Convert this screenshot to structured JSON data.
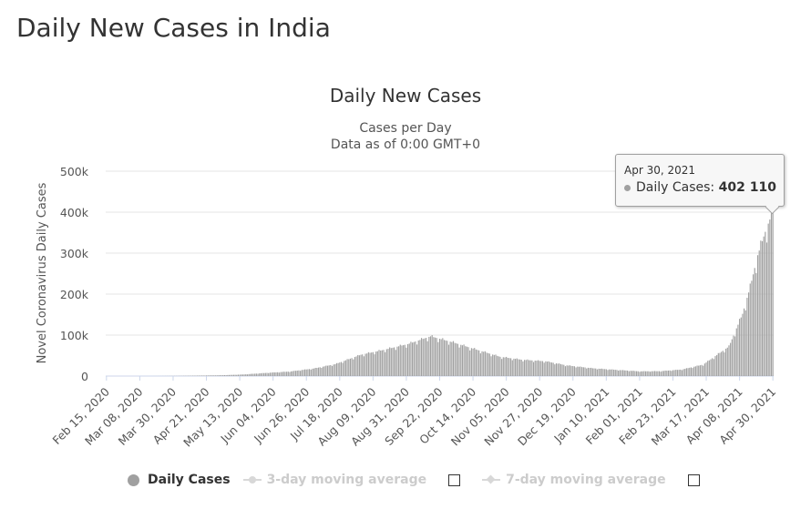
{
  "page": {
    "title": "Daily New Cases in India"
  },
  "chart_data": {
    "type": "bar",
    "title": "Daily New Cases",
    "subtitle": "Cases per Day",
    "subtitle2": "Data as of 0:00 GMT+0",
    "ylabel": "Novel Coronavirus Daily Cases",
    "xlabel": "",
    "ylim": [
      0,
      500000
    ],
    "y_ticks": [
      0,
      100000,
      200000,
      300000,
      400000,
      500000
    ],
    "y_tick_labels": [
      "0",
      "100k",
      "200k",
      "300k",
      "400k",
      "500k"
    ],
    "x_tick_labels": [
      "Feb 15, 2020",
      "Mar 08, 2020",
      "Mar 30, 2020",
      "Apr 21, 2020",
      "May 13, 2020",
      "Jun 04, 2020",
      "Jun 26, 2020",
      "Jul 18, 2020",
      "Aug 09, 2020",
      "Aug 31, 2020",
      "Sep 22, 2020",
      "Oct 14, 2020",
      "Nov 05, 2020",
      "Nov 27, 2020",
      "Dec 19, 2020",
      "Jan 10, 2021",
      "Feb 01, 2021",
      "Feb 23, 2021",
      "Mar 17, 2021",
      "Apr 08, 2021",
      "Apr 30, 2021"
    ],
    "x_range": [
      "Feb 15, 2020",
      "Apr 30, 2021"
    ],
    "series": [
      {
        "name": "Daily Cases",
        "color": "#a0a0a0",
        "keyframes": [
          {
            "date": "2020-02-15",
            "value": 0
          },
          {
            "date": "2020-03-01",
            "value": 2
          },
          {
            "date": "2020-03-15",
            "value": 20
          },
          {
            "date": "2020-04-01",
            "value": 400
          },
          {
            "date": "2020-04-15",
            "value": 1100
          },
          {
            "date": "2020-05-01",
            "value": 2000
          },
          {
            "date": "2020-05-15",
            "value": 3800
          },
          {
            "date": "2020-06-01",
            "value": 8000
          },
          {
            "date": "2020-06-15",
            "value": 11000
          },
          {
            "date": "2020-07-01",
            "value": 18500
          },
          {
            "date": "2020-07-15",
            "value": 29000
          },
          {
            "date": "2020-08-01",
            "value": 52000
          },
          {
            "date": "2020-08-15",
            "value": 63000
          },
          {
            "date": "2020-09-01",
            "value": 78000
          },
          {
            "date": "2020-09-16",
            "value": 97000
          },
          {
            "date": "2020-10-01",
            "value": 82000
          },
          {
            "date": "2020-10-15",
            "value": 66000
          },
          {
            "date": "2020-11-01",
            "value": 47000
          },
          {
            "date": "2020-11-15",
            "value": 40000
          },
          {
            "date": "2020-12-01",
            "value": 36000
          },
          {
            "date": "2020-12-15",
            "value": 26000
          },
          {
            "date": "2021-01-01",
            "value": 19000
          },
          {
            "date": "2021-01-15",
            "value": 15500
          },
          {
            "date": "2021-02-01",
            "value": 11500
          },
          {
            "date": "2021-02-15",
            "value": 12000
          },
          {
            "date": "2021-03-01",
            "value": 16000
          },
          {
            "date": "2021-03-15",
            "value": 28000
          },
          {
            "date": "2021-04-01",
            "value": 72000
          },
          {
            "date": "2021-04-10",
            "value": 152000
          },
          {
            "date": "2021-04-15",
            "value": 217000
          },
          {
            "date": "2021-04-20",
            "value": 295000
          },
          {
            "date": "2021-04-25",
            "value": 352000
          },
          {
            "date": "2021-04-30",
            "value": 402110
          }
        ]
      }
    ],
    "legend": [
      {
        "name": "Daily Cases",
        "active": true
      },
      {
        "name": "3-day moving average",
        "active": false
      },
      {
        "name": "7-day moving average",
        "active": false
      }
    ],
    "legend_position": "bottom",
    "tooltip": {
      "date": "Apr 30, 2021",
      "series": "Daily Cases: ",
      "value": "402 110"
    }
  }
}
